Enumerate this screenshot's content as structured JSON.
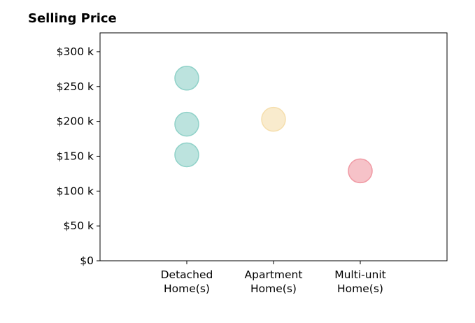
{
  "chart_data": {
    "type": "scatter",
    "title": "Selling Price",
    "xlabel": "",
    "ylabel": "",
    "categories": [
      [
        "Detached",
        "Home(s)"
      ],
      [
        "Apartment",
        "Home(s)"
      ],
      [
        "Multi-unit",
        "Home(s)"
      ]
    ],
    "y_ticks": [
      0,
      50000,
      100000,
      150000,
      200000,
      250000,
      300000
    ],
    "y_tick_labels": [
      "$0",
      "$50 k",
      "$100 k",
      "$150 k",
      "$200 k",
      "$250 k",
      "$300 k"
    ],
    "ylim": [
      0,
      327000
    ],
    "xlim": [
      -1,
      3
    ],
    "grid": false,
    "points": [
      {
        "category": 0,
        "y": 262000,
        "color": "#8fd1c8"
      },
      {
        "category": 0,
        "y": 196000,
        "color": "#8fd1c8"
      },
      {
        "category": 0,
        "y": 152000,
        "color": "#8fd1c8"
      },
      {
        "category": 1,
        "y": 203000,
        "color": "#f5deac"
      },
      {
        "category": 2,
        "y": 129000,
        "color": "#f09aa4"
      }
    ]
  }
}
